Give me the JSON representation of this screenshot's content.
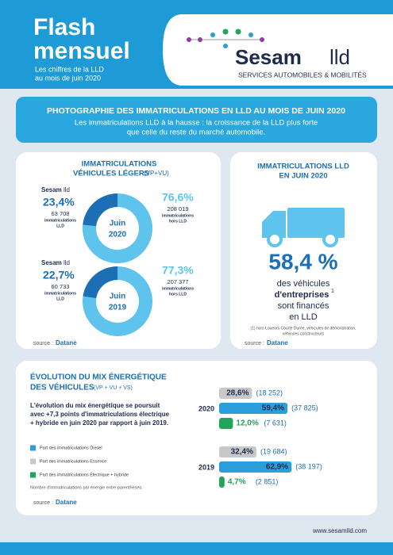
{
  "header": {
    "title_line1": "Flash",
    "title_line2": "mensuel",
    "subtitle_line1": "Les chiffres de la LLD",
    "subtitle_line2": "au mois de juin 2020",
    "logo_name": "Sesam",
    "logo_suffix": "lld",
    "logo_tagline": "SERVICES AUTOMOBILES & MOBILITÉS"
  },
  "banner": {
    "title": "PHOTOGRAPHIE DES IMMATRICULATIONS EN LLD AU MOIS DE JUIN 2020",
    "text_line1": "Les immatriculations LLD à la hausse : la croissance de la LLD plus forte",
    "text_line2": "que celle du reste du marché automobile."
  },
  "light_vehicles": {
    "title_line1": "IMMATRICULATIONS",
    "title_line2": "VÉHICULES LÉGERS",
    "title_suffix": "(VP+VU)",
    "donuts": [
      {
        "period_line1": "Juin",
        "period_line2": "2020",
        "logo_name": "Sesam",
        "logo_suffix": "lld",
        "lld": {
          "value": 23.4,
          "label": "23,4%",
          "count": "63 708",
          "caption_line1": "immatriculations",
          "caption_line2": "LLD"
        },
        "other": {
          "value": 76.6,
          "label": "76,6%",
          "count": "208 019",
          "caption_line1": "immatriculations",
          "caption_line2": "hors LLD"
        }
      },
      {
        "period_line1": "Juin",
        "period_line2": "2019",
        "logo_name": "Sesam",
        "logo_suffix": "lld",
        "lld": {
          "value": 22.7,
          "label": "22,7%",
          "count": "60 733",
          "caption_line1": "immatriculations",
          "caption_line2": "LLD"
        },
        "other": {
          "value": 77.3,
          "label": "77,3%",
          "count": "207 377",
          "caption_line1": "immatriculations",
          "caption_line2": "hors LLD"
        }
      }
    ],
    "source_label": "source :",
    "source_brand": "Datane"
  },
  "lld_june": {
    "title_line1": "IMMATRICULATIONS LLD",
    "title_line2": "EN JUIN 2020",
    "big_value": "58,4 %",
    "line1": "des véhicules",
    "line2": "d'entreprises",
    "footnote_mark": "1",
    "line3": "sont financés",
    "line4": "en LLD",
    "footnote_line1": "(1) hors Loueurs Courte Durée, véhicules de démonstration,",
    "footnote_line2": "véhicules constructeurs",
    "source_label": "source :",
    "source_brand": "Datane"
  },
  "energy_mix": {
    "title_line1": "ÉVOLUTION DU MIX ÉNERGÉTIQUE",
    "title_line2": "DES VÉHICULES",
    "title_suffix": "(VP + VU + VS)",
    "text_line1": "L'évolution du mix énergétique se poursuit",
    "text_line2": "avec +7,3 points d'immatriculations électrique",
    "text_line3": "+ hybride en juin 2020 par rapport à juin 2019.",
    "legend": [
      {
        "name": "Part des immatriculations Diesel",
        "color": "#2b9fdc"
      },
      {
        "name": "Part des immatriculations Essence",
        "color": "#c8c8c8"
      },
      {
        "name": "Part des immatriculations Électrique + hybride",
        "color": "#22a45a"
      }
    ],
    "note": "Nombre d'immatriculations par énergie entre parenthèses.",
    "groups": [
      {
        "year": "2020",
        "bars": [
          {
            "value": 28.6,
            "label": "28,6%",
            "count": "(18 252)",
            "color": "#c8c8c8"
          },
          {
            "value": 59.4,
            "label": "59,4%",
            "count": "(37 825)",
            "color": "#2b9fdc"
          },
          {
            "value": 12.0,
            "label": "12,0%",
            "count": "(7 631)",
            "color": "#22a45a"
          }
        ]
      },
      {
        "year": "2019",
        "bars": [
          {
            "value": 32.4,
            "label": "32,4%",
            "count": "(19 684)",
            "color": "#c8c8c8"
          },
          {
            "value": 62.9,
            "label": "62,9%",
            "count": "(38 197)",
            "color": "#2b9fdc"
          },
          {
            "value": 4.7,
            "label": "4,7%",
            "count": "(2 851)",
            "color": "#22a45a"
          }
        ]
      }
    ],
    "source_label": "source :",
    "source_brand": "Datane"
  },
  "footer": {
    "url": "www.sesamlld.com"
  }
}
